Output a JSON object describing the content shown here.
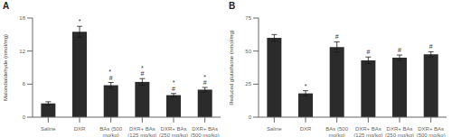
{
  "chart_data": [
    {
      "type": "bar",
      "title": "A",
      "categories": [
        "Saline",
        "DXR",
        "BAs (500\nmg/kg)",
        "DXR+ BAs\n(125 mg/kg)",
        "DXR+ BAs\n(250 mg/kg)",
        "DXR+ BAs\n(500 mg/kg)"
      ],
      "values": [
        2.5,
        15.5,
        5.8,
        6.4,
        4.0,
        5.0
      ],
      "errors": [
        0.3,
        1.0,
        0.5,
        0.6,
        0.3,
        0.4
      ],
      "ylabel": "Malondialdehyde (nmol/mg)",
      "ylim": [
        0,
        18
      ],
      "yticks": [
        0,
        6,
        12,
        18
      ],
      "color": "#2b2b2b",
      "annotations": [
        {
          "category": "DXR",
          "text": "*"
        },
        {
          "category": "BAs (500\nmg/kg)",
          "text": "* \n#"
        },
        {
          "category": "DXR+ BAs\n(125 mg/kg)",
          "text": "*\n#"
        },
        {
          "category": "DXR+ BAs\n(250 mg/kg)",
          "text": "*\n#"
        },
        {
          "category": "DXR+ BAs\n(500 mg/kg)",
          "text": "*\n#"
        }
      ]
    },
    {
      "type": "bar",
      "title": "B",
      "categories": [
        "Saline",
        "DXR",
        "BAs (500\nmg/kg)",
        "DXR+ BAs\n(125 mg/kg)",
        "DXR+ BAs\n(250 mg/kg)",
        "DXR+ BAs\n(500 mg/kg)"
      ],
      "values": [
        60.0,
        18.0,
        53.0,
        43.0,
        45.0,
        47.5
      ],
      "errors": [
        2.5,
        2.0,
        4.0,
        2.5,
        2.0,
        2.0
      ],
      "ylabel": "Reduced glutathione (nmol/mg)",
      "ylim": [
        0,
        75
      ],
      "yticks": [
        0,
        25,
        50,
        75
      ],
      "color": "#2b2b2b",
      "annotations": [
        {
          "category": "DXR",
          "text": "*"
        },
        {
          "category": "BAs (500\nmg/kg)",
          "text": "#"
        },
        {
          "category": "DXR+ BAs\n(125 mg/kg)",
          "text": "#"
        },
        {
          "category": "DXR+ BAs\n(250 mg/kg)",
          "text": "#"
        },
        {
          "category": "DXR+ BAs\n(500 mg/kg)",
          "text": "#"
        }
      ]
    }
  ]
}
